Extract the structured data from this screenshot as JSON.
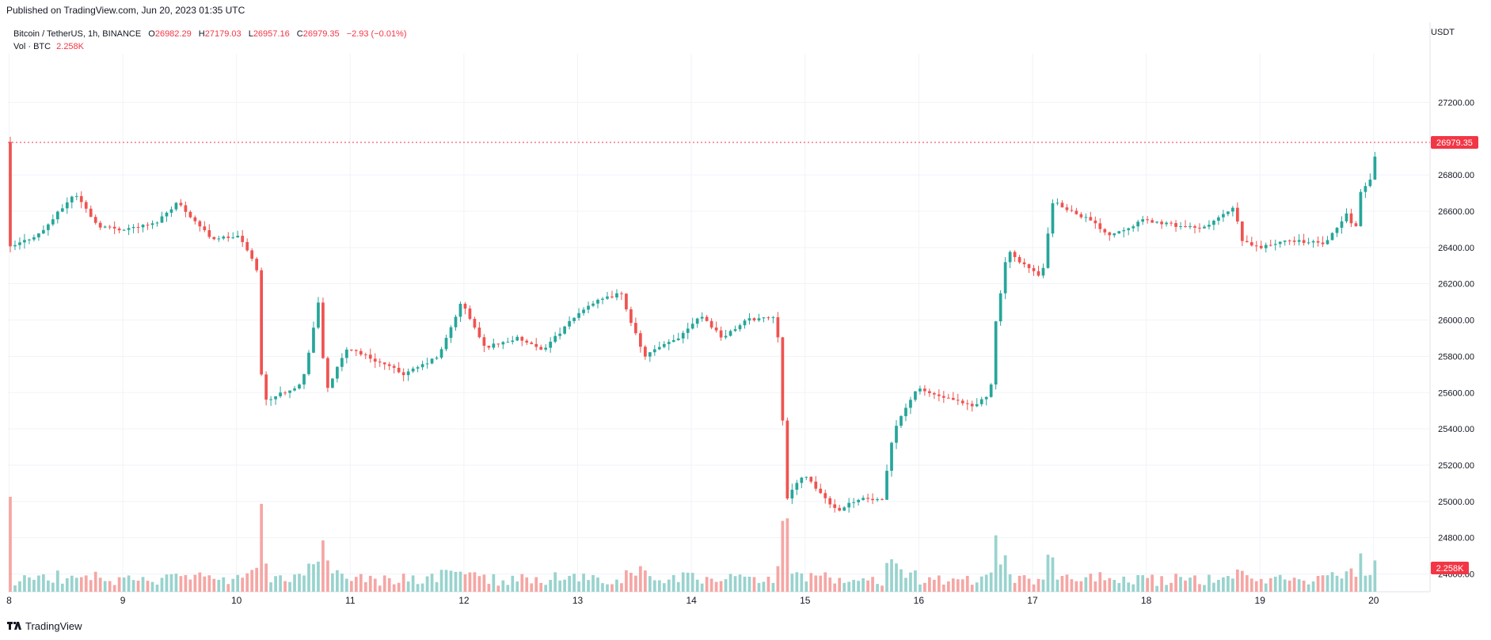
{
  "published": "Published on TradingView.com, Jun 20, 2023 01:35 UTC",
  "legend": {
    "symbol": "Bitcoin / TetherUS, 1h, BINANCE",
    "o_label": "O",
    "o_value": "26982.29",
    "h_label": "H",
    "h_value": "27179.03",
    "l_label": "L",
    "l_value": "26957.16",
    "c_label": "C",
    "c_value": "26979.35",
    "change": "−2.93 (−0.01%)",
    "vol_label": "Vol · BTC",
    "vol_value": "2.258K"
  },
  "currency": "USDT",
  "logo_text": "TradingView",
  "colors": {
    "up": "#26a69a",
    "down": "#ef5350",
    "up_vol": "#99d3ce",
    "down_vol": "#f5a6a4",
    "grid": "#f0f3fa",
    "price_line": "#f23645",
    "tag": "#f23645"
  },
  "chart_data": {
    "type": "candlestick",
    "y_ticks": [
      "27200.00",
      "26800.00",
      "26600.00",
      "26400.00",
      "26200.00",
      "26000.00",
      "25800.00",
      "25600.00",
      "25400.00",
      "25200.00",
      "25000.00",
      "24800.00",
      "24600.00"
    ],
    "x_ticks": [
      "8",
      "9",
      "10",
      "11",
      "12",
      "13",
      "14",
      "15",
      "16",
      "17",
      "18",
      "19",
      "20"
    ],
    "ylim": [
      24550,
      27350
    ],
    "last_price": "26979.35",
    "last_volume": "2.258K",
    "price_anchors": [
      {
        "day": 8.0,
        "p": 26390
      },
      {
        "day": 8.3,
        "p": 26480
      },
      {
        "day": 8.6,
        "p": 26700
      },
      {
        "day": 8.8,
        "p": 26520
      },
      {
        "day": 9.0,
        "p": 26500
      },
      {
        "day": 9.3,
        "p": 26530
      },
      {
        "day": 9.5,
        "p": 26650
      },
      {
        "day": 9.8,
        "p": 26450
      },
      {
        "day": 10.05,
        "p": 26460
      },
      {
        "day": 10.2,
        "p": 26280
      },
      {
        "day": 10.25,
        "p": 25550
      },
      {
        "day": 10.6,
        "p": 25650
      },
      {
        "day": 10.75,
        "p": 26120
      },
      {
        "day": 10.8,
        "p": 25600
      },
      {
        "day": 11.0,
        "p": 25850
      },
      {
        "day": 11.5,
        "p": 25700
      },
      {
        "day": 11.8,
        "p": 25800
      },
      {
        "day": 12.0,
        "p": 26100
      },
      {
        "day": 12.2,
        "p": 25850
      },
      {
        "day": 12.5,
        "p": 25900
      },
      {
        "day": 12.7,
        "p": 25830
      },
      {
        "day": 13.1,
        "p": 26080
      },
      {
        "day": 13.4,
        "p": 26150
      },
      {
        "day": 13.6,
        "p": 25800
      },
      {
        "day": 13.9,
        "p": 25900
      },
      {
        "day": 14.1,
        "p": 26030
      },
      {
        "day": 14.3,
        "p": 25900
      },
      {
        "day": 14.5,
        "p": 26000
      },
      {
        "day": 14.75,
        "p": 26020
      },
      {
        "day": 14.8,
        "p": 25850
      },
      {
        "day": 14.85,
        "p": 25000
      },
      {
        "day": 15.0,
        "p": 25150
      },
      {
        "day": 15.3,
        "p": 24950
      },
      {
        "day": 15.5,
        "p": 25020
      },
      {
        "day": 15.7,
        "p": 25000
      },
      {
        "day": 15.8,
        "p": 25400
      },
      {
        "day": 16.0,
        "p": 25620
      },
      {
        "day": 16.3,
        "p": 25560
      },
      {
        "day": 16.5,
        "p": 25520
      },
      {
        "day": 16.65,
        "p": 25600
      },
      {
        "day": 16.7,
        "p": 26000
      },
      {
        "day": 16.8,
        "p": 26380
      },
      {
        "day": 17.0,
        "p": 26280
      },
      {
        "day": 17.1,
        "p": 26230
      },
      {
        "day": 17.2,
        "p": 26650
      },
      {
        "day": 17.5,
        "p": 26560
      },
      {
        "day": 17.7,
        "p": 26470
      },
      {
        "day": 18.0,
        "p": 26550
      },
      {
        "day": 18.5,
        "p": 26500
      },
      {
        "day": 18.8,
        "p": 26620
      },
      {
        "day": 18.85,
        "p": 26440
      },
      {
        "day": 19.0,
        "p": 26400
      },
      {
        "day": 19.3,
        "p": 26440
      },
      {
        "day": 19.6,
        "p": 26420
      },
      {
        "day": 19.8,
        "p": 26600
      },
      {
        "day": 19.85,
        "p": 26450
      },
      {
        "day": 19.9,
        "p": 26700
      },
      {
        "day": 20.0,
        "p": 26780
      },
      {
        "day": 20.05,
        "p": 26982
      }
    ],
    "x_range": [
      7.99,
      20.05
    ]
  }
}
